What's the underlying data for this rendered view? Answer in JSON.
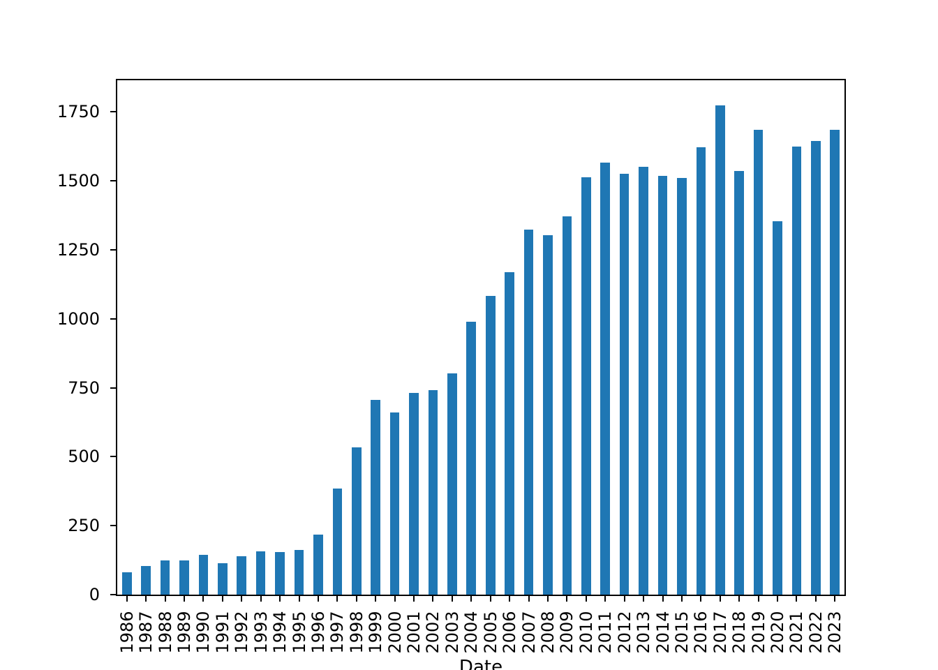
{
  "figure": {
    "background_color": "#ffffff",
    "axis_color": "#000000",
    "bar_color": "#1f77b4"
  },
  "chart_data": {
    "type": "bar",
    "title": "",
    "xlabel": "Date",
    "ylabel": "",
    "categories": [
      "1986",
      "1987",
      "1988",
      "1989",
      "1990",
      "1991",
      "1992",
      "1993",
      "1994",
      "1995",
      "1996",
      "1997",
      "1998",
      "1999",
      "2000",
      "2001",
      "2002",
      "2003",
      "2004",
      "2005",
      "2006",
      "2007",
      "2008",
      "2009",
      "2010",
      "2011",
      "2012",
      "2013",
      "2014",
      "2015",
      "2016",
      "2017",
      "2018",
      "2019",
      "2020",
      "2021",
      "2022",
      "2023"
    ],
    "values": [
      80,
      103,
      124,
      124,
      145,
      115,
      140,
      156,
      154,
      162,
      218,
      385,
      535,
      705,
      660,
      730,
      740,
      803,
      990,
      1082,
      1168,
      1322,
      1303,
      1372,
      1513,
      1565,
      1524,
      1551,
      1518,
      1510,
      1622,
      1774,
      1535,
      1684,
      1353,
      1625,
      1643,
      1684
    ],
    "yticks": [
      0,
      250,
      500,
      750,
      1000,
      1250,
      1500,
      1750
    ],
    "ylim": [
      0,
      1864
    ],
    "bar_width_fraction": 0.5,
    "x_tick_label_rotation": 90,
    "grid": false,
    "legend": "none"
  }
}
